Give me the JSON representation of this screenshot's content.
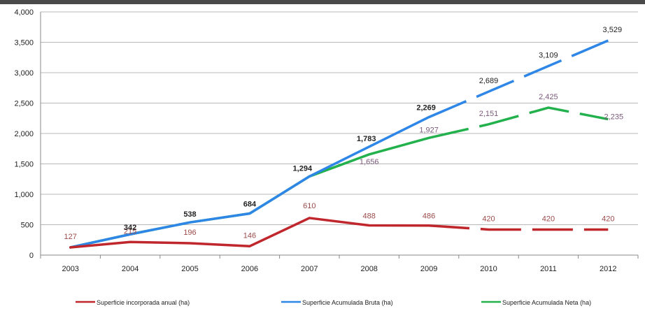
{
  "chart_data": {
    "type": "line",
    "title": "",
    "xlabel": "",
    "ylabel": "",
    "categories": [
      "2003",
      "2004",
      "2005",
      "2006",
      "2007",
      "2008",
      "2009",
      "2010",
      "2011",
      "2012"
    ],
    "ylim": [
      0,
      4000
    ],
    "yticks": [
      0,
      500,
      1000,
      1500,
      2000,
      2500,
      3000,
      3500,
      4000
    ],
    "ytick_labels": [
      "0",
      "500",
      "1,000",
      "1,500",
      "2,000",
      "2,500",
      "3,000",
      "3,500",
      "4,000"
    ],
    "grid": true,
    "legend_position": "bottom",
    "series": [
      {
        "name": "Superficie incorporada anual (ha)",
        "color": "#c0272d",
        "label_color": "#9c4a4a",
        "values": [
          127,
          215,
          196,
          146,
          610,
          488,
          486,
          420,
          420,
          420
        ],
        "labels": [
          "127",
          "215",
          "196",
          "146",
          "610",
          "488",
          "486",
          "420",
          "420",
          "420"
        ],
        "dashed_from_index": 7
      },
      {
        "name": "Superficie Acumulada Bruta (ha)",
        "color": "#2e86e6",
        "label_color": "#222222",
        "values": [
          127,
          342,
          538,
          684,
          1294,
          1783,
          2269,
          2689,
          3109,
          3529
        ],
        "labels": [
          "",
          "342",
          "538",
          "684",
          "1,294",
          "1,783",
          "2,269",
          "2,689",
          "3,109",
          "3,529"
        ],
        "dashed_from_index": 7
      },
      {
        "name": "Superficie Acumulada Neta (ha)",
        "color": "#22b14c",
        "label_color": "#7a5a7a",
        "values": [
          127,
          342,
          538,
          684,
          1294,
          1656,
          1927,
          2151,
          2425,
          2235
        ],
        "labels": [
          "",
          "",
          "",
          "",
          "",
          "1,656",
          "1,927",
          "2,151",
          "2,425",
          "2,235"
        ],
        "dashed_from_index": 7
      }
    ]
  }
}
